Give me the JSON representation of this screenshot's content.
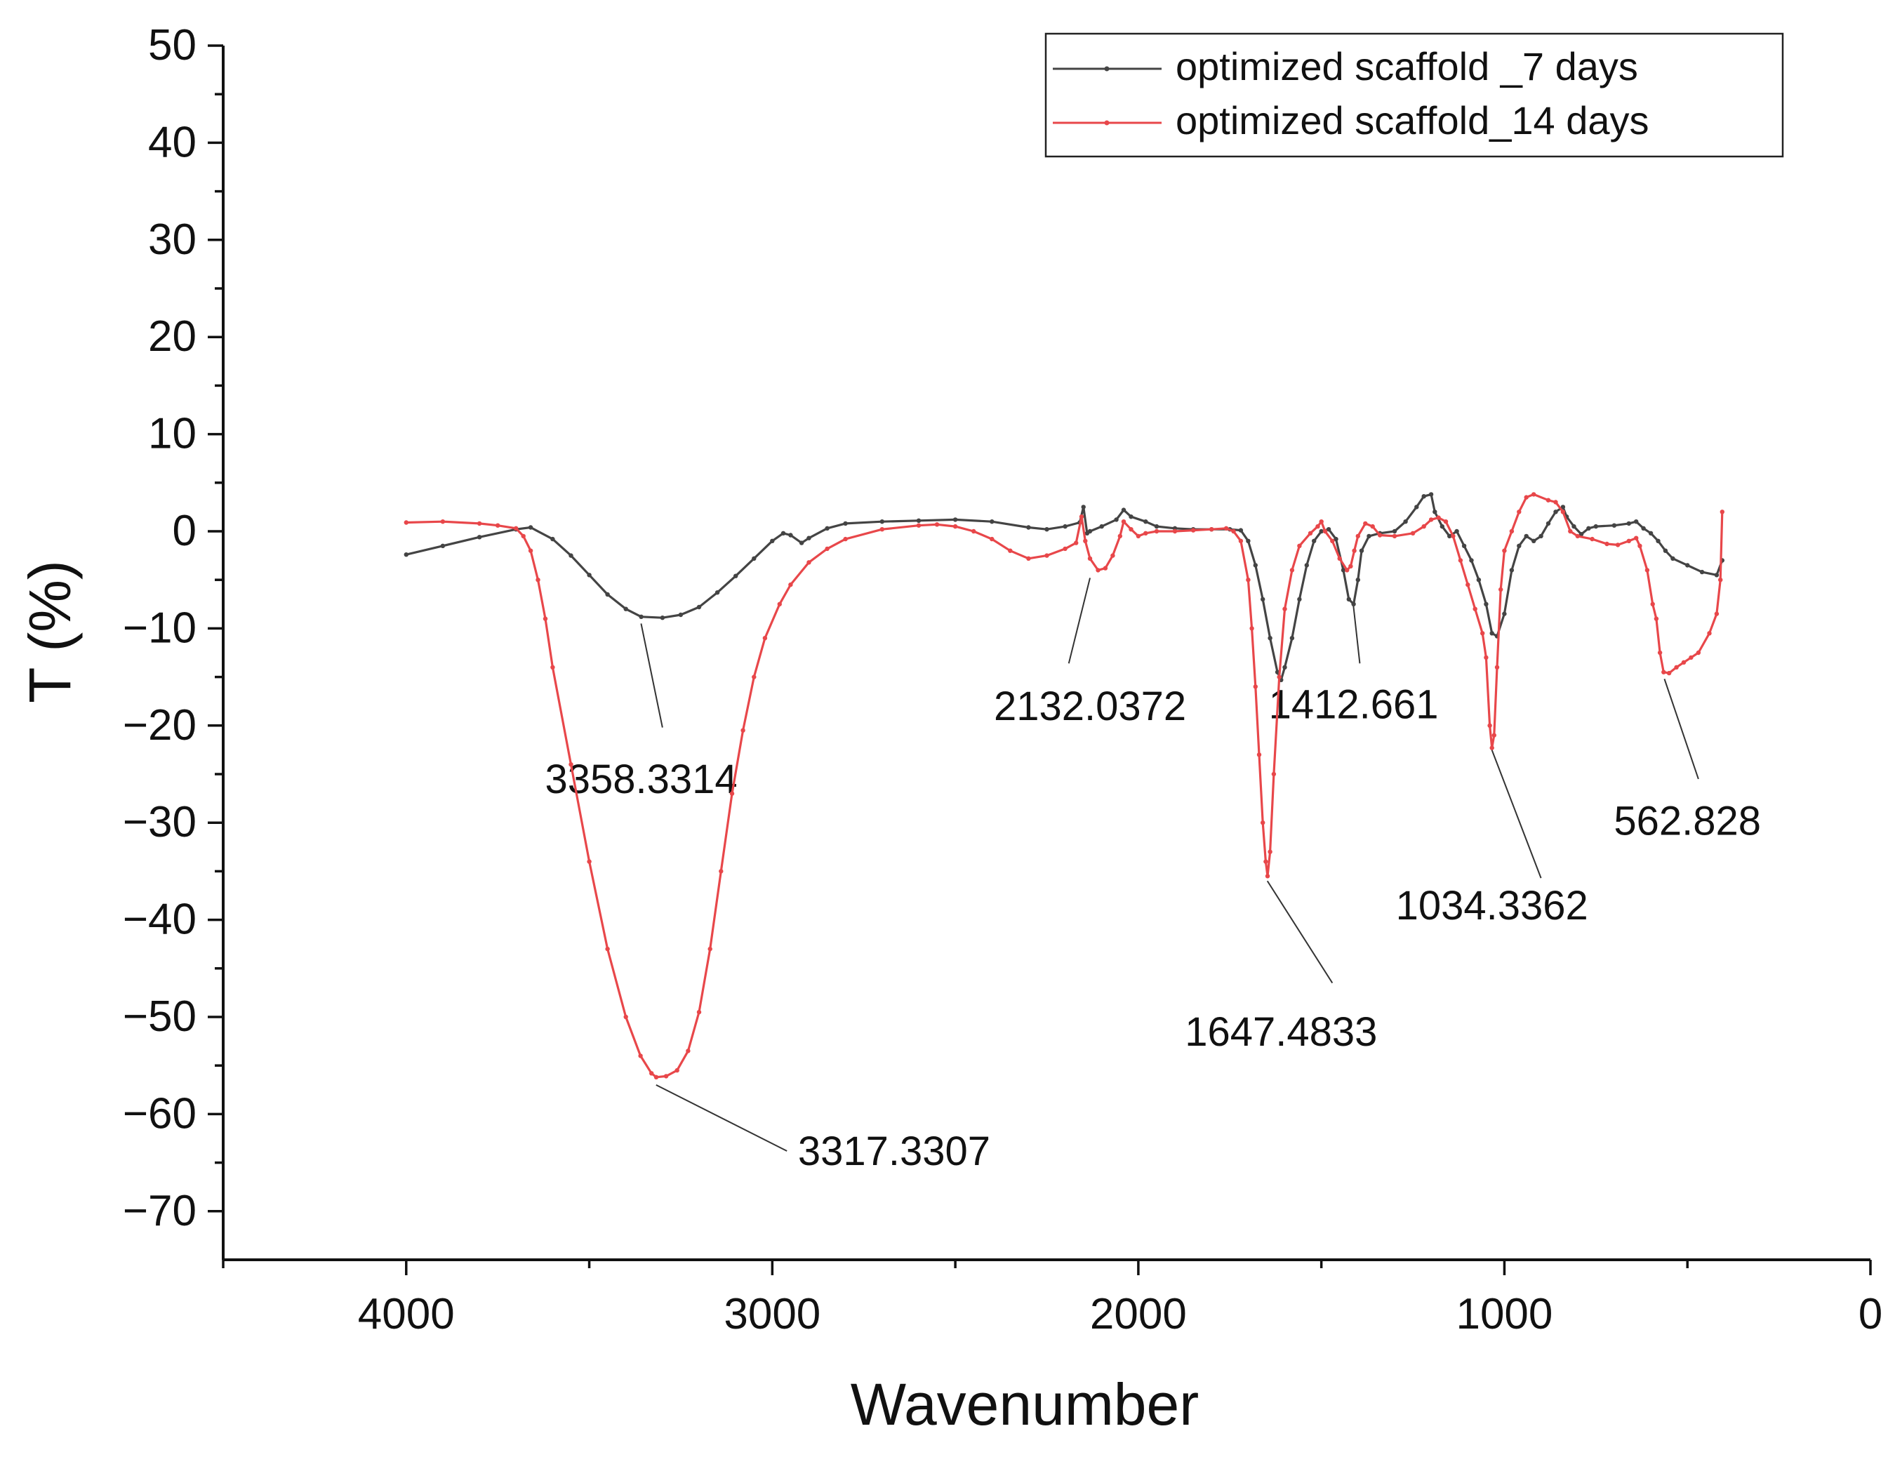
{
  "chart_data": {
    "type": "line",
    "xlabel": "Wavenumber",
    "ylabel": "T (%)",
    "xlim": [
      4500,
      0
    ],
    "ylim": [
      -75,
      50
    ],
    "xticks": [
      4000,
      3000,
      2000,
      1000,
      0
    ],
    "yticks": [
      50,
      40,
      30,
      20,
      10,
      0,
      -10,
      -20,
      -30,
      -40,
      -50,
      -60,
      -70
    ],
    "grid": false,
    "legend_position": "top-right",
    "series": [
      {
        "name": "optimized scaffold _7 days",
        "color": "#444444",
        "points": [
          [
            4000,
            -2.4
          ],
          [
            3900,
            -1.5
          ],
          [
            3800,
            -0.6
          ],
          [
            3700,
            0.2
          ],
          [
            3660,
            0.4
          ],
          [
            3600,
            -0.8
          ],
          [
            3550,
            -2.5
          ],
          [
            3500,
            -4.5
          ],
          [
            3450,
            -6.5
          ],
          [
            3400,
            -8.0
          ],
          [
            3358,
            -8.8
          ],
          [
            3300,
            -8.9
          ],
          [
            3250,
            -8.6
          ],
          [
            3200,
            -7.8
          ],
          [
            3150,
            -6.3
          ],
          [
            3100,
            -4.6
          ],
          [
            3050,
            -2.8
          ],
          [
            3000,
            -1.0
          ],
          [
            2970,
            -0.2
          ],
          [
            2950,
            -0.4
          ],
          [
            2920,
            -1.2
          ],
          [
            2900,
            -0.7
          ],
          [
            2850,
            0.3
          ],
          [
            2800,
            0.8
          ],
          [
            2700,
            1.0
          ],
          [
            2600,
            1.1
          ],
          [
            2500,
            1.2
          ],
          [
            2400,
            1.0
          ],
          [
            2300,
            0.4
          ],
          [
            2250,
            0.2
          ],
          [
            2200,
            0.5
          ],
          [
            2160,
            0.9
          ],
          [
            2150,
            2.5
          ],
          [
            2140,
            -0.2
          ],
          [
            2132,
            0.0
          ],
          [
            2100,
            0.5
          ],
          [
            2060,
            1.2
          ],
          [
            2040,
            2.2
          ],
          [
            2020,
            1.5
          ],
          [
            1980,
            1.0
          ],
          [
            1950,
            0.5
          ],
          [
            1900,
            0.3
          ],
          [
            1850,
            0.2
          ],
          [
            1800,
            0.2
          ],
          [
            1750,
            0.2
          ],
          [
            1720,
            0.1
          ],
          [
            1700,
            -1.0
          ],
          [
            1680,
            -3.5
          ],
          [
            1660,
            -7.0
          ],
          [
            1640,
            -11.0
          ],
          [
            1620,
            -14.5
          ],
          [
            1610,
            -15.3
          ],
          [
            1600,
            -14.0
          ],
          [
            1580,
            -11.0
          ],
          [
            1560,
            -7.0
          ],
          [
            1540,
            -3.5
          ],
          [
            1520,
            -1.0
          ],
          [
            1500,
            0.0
          ],
          [
            1480,
            0.2
          ],
          [
            1460,
            -0.8
          ],
          [
            1440,
            -4.0
          ],
          [
            1425,
            -7.0
          ],
          [
            1412,
            -7.5
          ],
          [
            1400,
            -5.0
          ],
          [
            1390,
            -2.0
          ],
          [
            1370,
            -0.5
          ],
          [
            1340,
            -0.2
          ],
          [
            1300,
            0.0
          ],
          [
            1270,
            1.0
          ],
          [
            1240,
            2.5
          ],
          [
            1220,
            3.6
          ],
          [
            1200,
            3.8
          ],
          [
            1190,
            2.0
          ],
          [
            1170,
            0.5
          ],
          [
            1150,
            -0.5
          ],
          [
            1130,
            0.0
          ],
          [
            1110,
            -1.5
          ],
          [
            1090,
            -3.0
          ],
          [
            1070,
            -5.0
          ],
          [
            1050,
            -7.5
          ],
          [
            1034,
            -10.5
          ],
          [
            1020,
            -10.8
          ],
          [
            1000,
            -8.5
          ],
          [
            980,
            -4.0
          ],
          [
            960,
            -1.5
          ],
          [
            940,
            -0.5
          ],
          [
            920,
            -1.0
          ],
          [
            900,
            -0.5
          ],
          [
            880,
            0.8
          ],
          [
            860,
            2.0
          ],
          [
            840,
            2.5
          ],
          [
            830,
            1.5
          ],
          [
            810,
            0.5
          ],
          [
            790,
            -0.3
          ],
          [
            770,
            0.3
          ],
          [
            750,
            0.5
          ],
          [
            700,
            0.6
          ],
          [
            660,
            0.8
          ],
          [
            640,
            1.0
          ],
          [
            620,
            0.3
          ],
          [
            600,
            -0.2
          ],
          [
            580,
            -1.0
          ],
          [
            560,
            -2.0
          ],
          [
            540,
            -2.8
          ],
          [
            500,
            -3.5
          ],
          [
            460,
            -4.2
          ],
          [
            420,
            -4.5
          ],
          [
            405,
            -3.0
          ]
        ]
      },
      {
        "name": "optimized scaffold_14 days",
        "color": "#e8474a",
        "points": [
          [
            4000,
            0.9
          ],
          [
            3900,
            1.0
          ],
          [
            3800,
            0.8
          ],
          [
            3750,
            0.6
          ],
          [
            3700,
            0.3
          ],
          [
            3680,
            -0.5
          ],
          [
            3660,
            -2.0
          ],
          [
            3640,
            -5.0
          ],
          [
            3620,
            -9.0
          ],
          [
            3600,
            -14.0
          ],
          [
            3550,
            -24.0
          ],
          [
            3500,
            -34.0
          ],
          [
            3450,
            -43.0
          ],
          [
            3400,
            -50.0
          ],
          [
            3360,
            -54.0
          ],
          [
            3330,
            -55.8
          ],
          [
            3317,
            -56.2
          ],
          [
            3290,
            -56.1
          ],
          [
            3260,
            -55.5
          ],
          [
            3230,
            -53.5
          ],
          [
            3200,
            -49.5
          ],
          [
            3170,
            -43.0
          ],
          [
            3140,
            -35.0
          ],
          [
            3110,
            -27.0
          ],
          [
            3080,
            -20.5
          ],
          [
            3050,
            -15.0
          ],
          [
            3020,
            -11.0
          ],
          [
            2980,
            -7.5
          ],
          [
            2950,
            -5.5
          ],
          [
            2900,
            -3.2
          ],
          [
            2850,
            -1.8
          ],
          [
            2800,
            -0.8
          ],
          [
            2700,
            0.2
          ],
          [
            2600,
            0.6
          ],
          [
            2550,
            0.7
          ],
          [
            2500,
            0.5
          ],
          [
            2450,
            0.0
          ],
          [
            2400,
            -0.8
          ],
          [
            2350,
            -2.0
          ],
          [
            2300,
            -2.8
          ],
          [
            2250,
            -2.5
          ],
          [
            2200,
            -1.8
          ],
          [
            2170,
            -1.2
          ],
          [
            2155,
            1.5
          ],
          [
            2145,
            -1.0
          ],
          [
            2132,
            -2.8
          ],
          [
            2110,
            -4.0
          ],
          [
            2090,
            -3.8
          ],
          [
            2070,
            -2.5
          ],
          [
            2050,
            -0.5
          ],
          [
            2040,
            1.0
          ],
          [
            2020,
            0.2
          ],
          [
            2000,
            -0.5
          ],
          [
            1980,
            -0.2
          ],
          [
            1950,
            0.0
          ],
          [
            1900,
            0.0
          ],
          [
            1850,
            0.1
          ],
          [
            1800,
            0.2
          ],
          [
            1760,
            0.3
          ],
          [
            1740,
            0.0
          ],
          [
            1720,
            -1.0
          ],
          [
            1700,
            -5.0
          ],
          [
            1690,
            -10.0
          ],
          [
            1680,
            -16.0
          ],
          [
            1670,
            -23.0
          ],
          [
            1660,
            -30.0
          ],
          [
            1652,
            -34.0
          ],
          [
            1647,
            -35.5
          ],
          [
            1640,
            -33.0
          ],
          [
            1630,
            -25.0
          ],
          [
            1615,
            -15.0
          ],
          [
            1600,
            -8.0
          ],
          [
            1580,
            -4.0
          ],
          [
            1560,
            -1.5
          ],
          [
            1530,
            -0.2
          ],
          [
            1510,
            0.5
          ],
          [
            1500,
            1.0
          ],
          [
            1490,
            0.0
          ],
          [
            1470,
            -1.0
          ],
          [
            1450,
            -2.8
          ],
          [
            1430,
            -4.0
          ],
          [
            1420,
            -3.6
          ],
          [
            1410,
            -2.0
          ],
          [
            1400,
            -0.5
          ],
          [
            1380,
            0.8
          ],
          [
            1360,
            0.5
          ],
          [
            1340,
            -0.4
          ],
          [
            1300,
            -0.5
          ],
          [
            1250,
            -0.2
          ],
          [
            1220,
            0.5
          ],
          [
            1200,
            1.2
          ],
          [
            1180,
            1.4
          ],
          [
            1160,
            1.0
          ],
          [
            1140,
            -0.5
          ],
          [
            1120,
            -3.0
          ],
          [
            1100,
            -5.5
          ],
          [
            1080,
            -8.0
          ],
          [
            1060,
            -10.5
          ],
          [
            1050,
            -13.0
          ],
          [
            1040,
            -20.0
          ],
          [
            1034,
            -22.3
          ],
          [
            1028,
            -21.0
          ],
          [
            1020,
            -14.0
          ],
          [
            1010,
            -6.0
          ],
          [
            1000,
            -2.0
          ],
          [
            980,
            0.0
          ],
          [
            960,
            2.0
          ],
          [
            940,
            3.5
          ],
          [
            920,
            3.8
          ],
          [
            880,
            3.2
          ],
          [
            860,
            3.0
          ],
          [
            840,
            2.0
          ],
          [
            820,
            0.0
          ],
          [
            800,
            -0.5
          ],
          [
            760,
            -0.8
          ],
          [
            720,
            -1.3
          ],
          [
            690,
            -1.4
          ],
          [
            660,
            -1.0
          ],
          [
            640,
            -0.7
          ],
          [
            630,
            -1.5
          ],
          [
            610,
            -4.0
          ],
          [
            595,
            -7.5
          ],
          [
            585,
            -9.0
          ],
          [
            575,
            -12.5
          ],
          [
            565,
            -14.5
          ],
          [
            550,
            -14.6
          ],
          [
            530,
            -14.0
          ],
          [
            510,
            -13.5
          ],
          [
            490,
            -13.0
          ],
          [
            470,
            -12.5
          ],
          [
            440,
            -10.5
          ],
          [
            420,
            -8.5
          ],
          [
            410,
            -5.0
          ],
          [
            405,
            2.0
          ]
        ]
      }
    ],
    "annotations": [
      {
        "label": "3358.3314",
        "x": 3358.3314,
        "y": -9.5,
        "line_to": [
          3300,
          -20.2
        ],
        "text_at": [
          3358,
          -25.5
        ]
      },
      {
        "label": "3317.3307",
        "x": 3317.3307,
        "y": -57.0,
        "line_to": [
          2960,
          -63.8
        ],
        "text_at": [
          2930,
          -63.8
        ]
      },
      {
        "label": "2132.0372",
        "x": 2132.0372,
        "y": -4.8,
        "line_to": [
          2190,
          -13.6
        ],
        "text_at": [
          2132,
          -18.0
        ]
      },
      {
        "label": "1647.4833",
        "x": 1647.4833,
        "y": -36.0,
        "line_to": [
          1470,
          -46.5
        ],
        "text_at": [
          1610,
          -51.5
        ]
      },
      {
        "label": "1412.661",
        "x": 1412.661,
        "y": -7.6,
        "line_to": [
          1395,
          -13.6
        ],
        "text_at": [
          1412,
          -17.8
        ]
      },
      {
        "label": "1034.3362",
        "x": 1034.3362,
        "y": -22.5,
        "line_to": [
          900,
          -35.7
        ],
        "text_at": [
          1034,
          -38.5
        ]
      },
      {
        "label": "562.828",
        "x": 562.828,
        "y": -15.2,
        "line_to": [
          470,
          -25.5
        ],
        "text_at": [
          500,
          -29.8
        ]
      }
    ]
  }
}
